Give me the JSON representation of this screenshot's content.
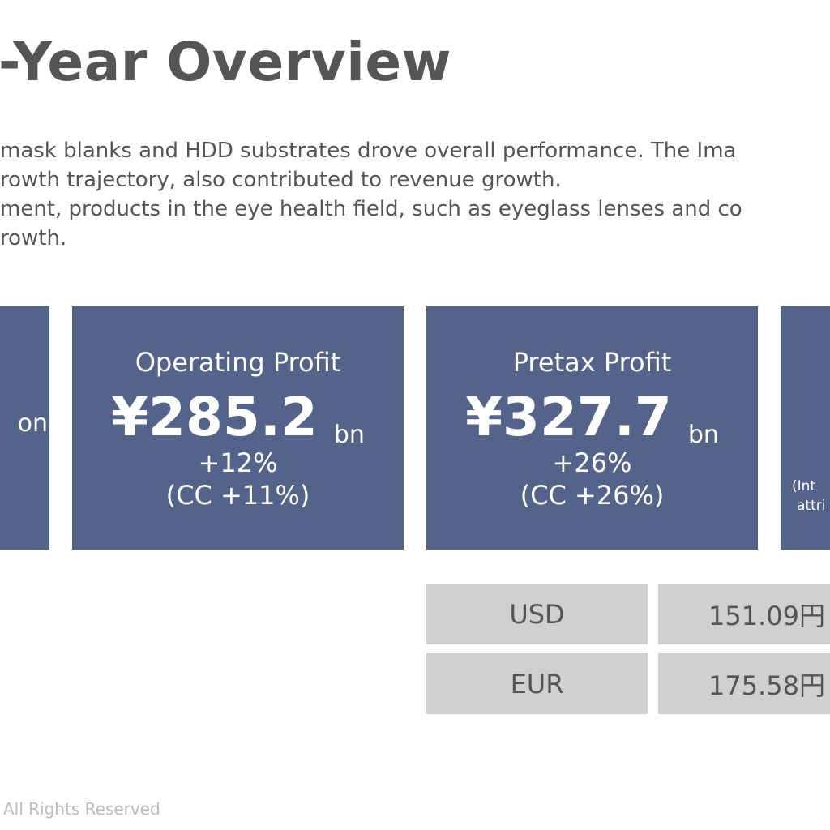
{
  "page": {
    "title": "-Year Overview",
    "body_lines": [
      "mask blanks and HDD substrates drove overall performance. The Ima",
      "rowth trajectory, also contributed to revenue growth.",
      "ment, products in the eye health field, such as eyeglass lenses and co",
      "rowth."
    ]
  },
  "cards": {
    "left_partial": {
      "unit": "on"
    },
    "operating_profit": {
      "label": "Operating Profit",
      "value": "¥285.2",
      "unit": "bn",
      "growth": "+12%",
      "cc": "(CC +11%)"
    },
    "pretax_profit": {
      "label": "Pretax Profit",
      "value": "¥327.7",
      "unit": "bn",
      "growth": "+26%",
      "cc": "(CC +26%)"
    },
    "right_partial": {
      "note_line1": "(Int",
      "note_line2": "attri"
    }
  },
  "fx_rates": [
    {
      "currency": "USD",
      "rate": "151.09円"
    },
    {
      "currency": "EUR",
      "rate": "175.58円"
    }
  ],
  "footer": {
    "text": "All Rights Reserved"
  },
  "colors": {
    "card_bg": "#53638a",
    "fx_bg": "#d0d0d0",
    "text": "#555555"
  }
}
